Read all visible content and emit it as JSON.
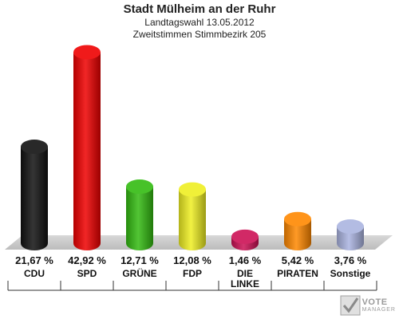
{
  "header": {
    "title": "Stadt Mülheim an der Ruhr",
    "subtitle1": "Landtagswahl 13.05.2012",
    "subtitle2": "Zweitstimmen Stimmbezirk 205"
  },
  "chart_data": {
    "type": "bar",
    "title": "Stadt Mülheim an der Ruhr",
    "subtitle": "Landtagswahl 13.05.2012 / Zweitstimmen Stimmbezirk 205",
    "categories": [
      "CDU",
      "SPD",
      "GRÜNE",
      "FDP",
      "DIE LINKE",
      "PIRATEN",
      "Sonstige"
    ],
    "category_lines": [
      [
        "CDU"
      ],
      [
        "SPD"
      ],
      [
        "GRÜNE"
      ],
      [
        "FDP"
      ],
      [
        "DIE",
        "LINKE"
      ],
      [
        "PIRATEN"
      ],
      [
        "Sonstige"
      ]
    ],
    "values": [
      21.67,
      42.92,
      12.71,
      12.08,
      1.46,
      5.42,
      3.76
    ],
    "value_labels": [
      "21,67 %",
      "42,92 %",
      "12,71 %",
      "12,08 %",
      "1,46 %",
      "5,42 %",
      "3,76 %"
    ],
    "colors": [
      "#111111",
      "#ee0000",
      "#33bb11",
      "#eeee22",
      "#cc1155",
      "#ff8800",
      "#aab4e0"
    ],
    "ylim": [
      0,
      43
    ]
  },
  "watermark": {
    "line1": "VOTE",
    "line2": "MANAGER"
  }
}
